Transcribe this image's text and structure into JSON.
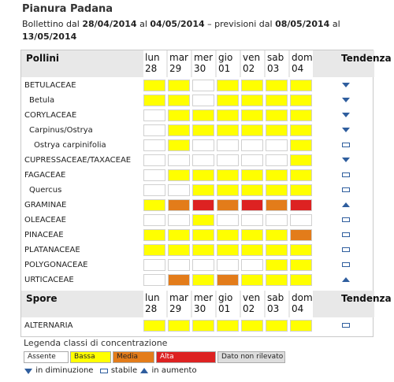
{
  "header": {
    "title": "Pianura Padana",
    "bulletin_prefix": "Bollettino dal ",
    "from": "28/04/2014",
    "al1": " al ",
    "to": "04/05/2014",
    "mid": " – previsioni dal ",
    "fc_from": "08/05/2014",
    "al2": " al ",
    "fc_to": "13/05/2014"
  },
  "days": [
    {
      "name": "lun",
      "num": "28"
    },
    {
      "name": "mar",
      "num": "29"
    },
    {
      "name": "mer",
      "num": "30"
    },
    {
      "name": "gio",
      "num": "01"
    },
    {
      "name": "ven",
      "num": "02"
    },
    {
      "name": "sab",
      "num": "03"
    },
    {
      "name": "dom",
      "num": "04"
    }
  ],
  "trend_header": "Tendenza",
  "colors": {
    "A": "#ffffff",
    "B": "#ffff00",
    "M": "#e37c1a",
    "H": "#dd2222",
    "N": "#dddddd",
    "trend": "#2f5e9e"
  },
  "sections": [
    {
      "title": "Pollini",
      "rows": [
        {
          "label": "BETULACEAE",
          "indent": 0,
          "levels": [
            "B",
            "B",
            "A",
            "B",
            "B",
            "B",
            "B"
          ],
          "trend": "down"
        },
        {
          "label": "Betula",
          "indent": 1,
          "levels": [
            "B",
            "B",
            "A",
            "B",
            "B",
            "B",
            "B"
          ],
          "trend": "down"
        },
        {
          "label": "CORYLACEAE",
          "indent": 0,
          "levels": [
            "A",
            "B",
            "B",
            "B",
            "B",
            "B",
            "B"
          ],
          "trend": "down"
        },
        {
          "label": "Carpinus/Ostrya",
          "indent": 1,
          "levels": [
            "A",
            "B",
            "B",
            "B",
            "B",
            "B",
            "B"
          ],
          "trend": "down"
        },
        {
          "label": "Ostrya carpinifolia",
          "indent": 2,
          "levels": [
            "A",
            "B",
            "A",
            "A",
            "A",
            "A",
            "B"
          ],
          "trend": "stable"
        },
        {
          "label": "CUPRESSACEAE/TAXACEAE",
          "indent": 0,
          "levels": [
            "A",
            "A",
            "A",
            "A",
            "A",
            "A",
            "B"
          ],
          "trend": "down"
        },
        {
          "label": "FAGACEAE",
          "indent": 0,
          "levels": [
            "A",
            "B",
            "B",
            "B",
            "B",
            "B",
            "B"
          ],
          "trend": "stable"
        },
        {
          "label": "Quercus",
          "indent": 1,
          "levels": [
            "A",
            "A",
            "B",
            "B",
            "B",
            "B",
            "B"
          ],
          "trend": "stable"
        },
        {
          "label": "GRAMINAE",
          "indent": 0,
          "levels": [
            "B",
            "M",
            "H",
            "M",
            "H",
            "M",
            "H"
          ],
          "trend": "up"
        },
        {
          "label": "OLEACEAE",
          "indent": 0,
          "levels": [
            "A",
            "A",
            "B",
            "A",
            "A",
            "A",
            "A"
          ],
          "trend": "stable"
        },
        {
          "label": "PINACEAE",
          "indent": 0,
          "levels": [
            "B",
            "B",
            "B",
            "B",
            "B",
            "B",
            "M"
          ],
          "trend": "stable"
        },
        {
          "label": "PLATANACEAE",
          "indent": 0,
          "levels": [
            "B",
            "B",
            "B",
            "B",
            "B",
            "B",
            "B"
          ],
          "trend": "stable"
        },
        {
          "label": "POLYGONACEAE",
          "indent": 0,
          "levels": [
            "A",
            "A",
            "A",
            "A",
            "A",
            "B",
            "B"
          ],
          "trend": "stable"
        },
        {
          "label": "URTICACEAE",
          "indent": 0,
          "levels": [
            "A",
            "M",
            "B",
            "M",
            "B",
            "B",
            "B"
          ],
          "trend": "up"
        }
      ]
    },
    {
      "title": "Spore",
      "rows": [
        {
          "label": "ALTERNARIA",
          "indent": 0,
          "levels": [
            "B",
            "B",
            "B",
            "B",
            "B",
            "B",
            "B"
          ],
          "trend": "stable"
        }
      ]
    }
  ],
  "legend": {
    "title": "Legenda classi di concentrazione",
    "classes": [
      {
        "key": "A",
        "label": "Assente"
      },
      {
        "key": "B",
        "label": "Bassa"
      },
      {
        "key": "M",
        "label": "Media"
      },
      {
        "key": "H",
        "label": "Alta"
      },
      {
        "key": "N",
        "label": "Dato non rilevato"
      }
    ],
    "trend_down": "in diminuzione",
    "trend_stable": "stabile",
    "trend_up": "in aumento"
  }
}
